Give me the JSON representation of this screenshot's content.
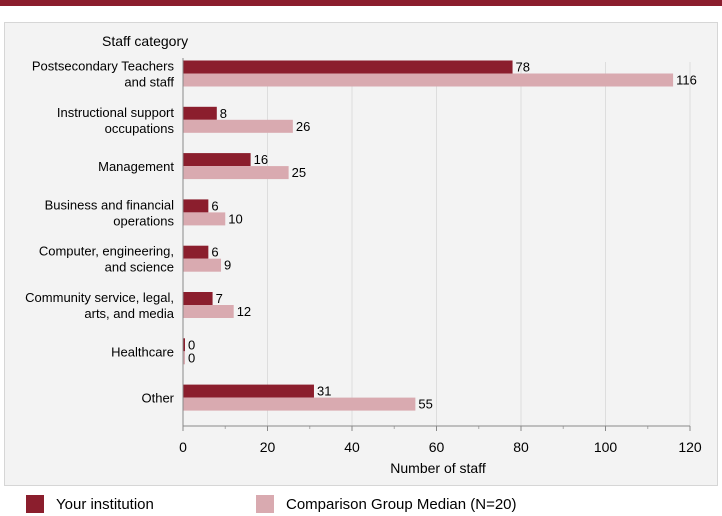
{
  "colors": {
    "accent": "#8b1e2d",
    "your_institution": "#8b1e2d",
    "comparison": "#d9aab0",
    "panel_background": "#f3f3f3",
    "grid": "#dddddd"
  },
  "chart_data": {
    "type": "bar",
    "orientation": "horizontal",
    "category_axis_title": "Staff category",
    "xlabel": "Number of staff",
    "xlim": [
      0,
      120
    ],
    "xticks": [
      0,
      20,
      40,
      60,
      80,
      100,
      120
    ],
    "grid": "vertical",
    "legend_position": "bottom",
    "categories": [
      "Postsecondary Teachers and staff",
      "Instructional support occupations",
      "Management",
      "Business and financial operations",
      "Computer, engineering, and science",
      "Community service, legal, arts, and media",
      "Healthcare",
      "Other"
    ],
    "category_label_lines": [
      [
        "Postsecondary Teachers",
        "and staff"
      ],
      [
        "Instructional support",
        "occupations"
      ],
      [
        "Management"
      ],
      [
        "Business and financial",
        "operations"
      ],
      [
        "Computer, engineering,",
        "and science"
      ],
      [
        "Community service, legal,",
        "arts, and media"
      ],
      [
        "Healthcare"
      ],
      [
        "Other"
      ]
    ],
    "series": [
      {
        "name": "Your institution",
        "values": [
          78,
          8,
          16,
          6,
          6,
          7,
          0,
          31
        ]
      },
      {
        "name": "Comparison Group Median (N=20)",
        "values": [
          116,
          26,
          25,
          10,
          9,
          12,
          0,
          55
        ]
      }
    ]
  }
}
